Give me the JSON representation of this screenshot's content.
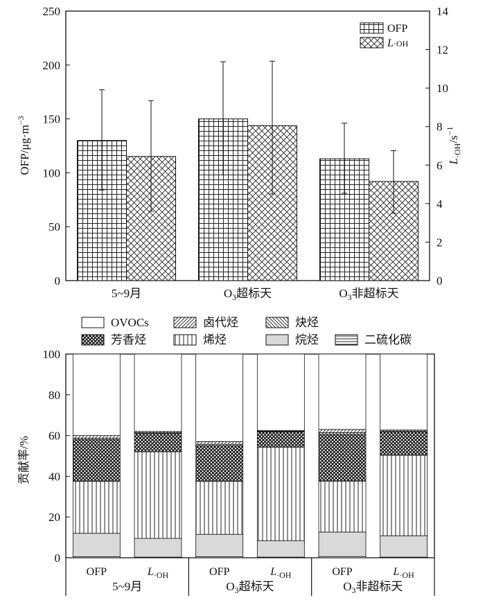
{
  "chart_data": [
    {
      "type": "bar",
      "categories": [
        "5~9月",
        "O₃超标天",
        "O₃非超标天"
      ],
      "ylabel_left": "OFP/μg·m⁻³",
      "ylabel_right": "L·OH/s⁻¹",
      "ylim_left": [
        0,
        250
      ],
      "ylim_right": [
        0,
        14
      ],
      "yticks_left": [
        "0",
        "50",
        "100",
        "150",
        "200",
        "250"
      ],
      "yticks_right": [
        "0",
        "2",
        "4",
        "6",
        "8",
        "10",
        "12",
        "14"
      ],
      "legend": [
        "OFP",
        "L·OH"
      ],
      "series": [
        {
          "name": "OFP",
          "axis": "left",
          "values": [
            130,
            150,
            113
          ],
          "error_low": [
            84,
            98,
            81
          ],
          "error_high": [
            177,
            203,
            146
          ]
        },
        {
          "name": "L·OH",
          "axis": "right",
          "values": [
            6.45,
            8.05,
            5.15
          ],
          "error_low": [
            3.6,
            4.5,
            3.5
          ],
          "error_high": [
            9.35,
            11.4,
            6.75
          ]
        }
      ]
    },
    {
      "type": "bar",
      "stacked": true,
      "ylabel": "贡献率/%",
      "ylim": [
        0,
        100
      ],
      "yticks": [
        "0",
        "20",
        "40",
        "60",
        "80",
        "100"
      ],
      "metric_labels": [
        "OFP",
        "L·OH",
        "OFP",
        "L·OH",
        "OFP",
        "L·OH"
      ],
      "group_labels": [
        "5~9月",
        "O₃超标天",
        "O₃非超标天"
      ],
      "legend": [
        "OVOCs",
        "卤代烃",
        "炔烃",
        "芳香烃",
        "烯烃",
        "烷烃",
        "二硫化碳"
      ],
      "series": [
        {
          "name": "二硫化碳",
          "values": [
            0.5,
            0.3,
            0.5,
            0.3,
            0.6,
            0.3
          ]
        },
        {
          "name": "烷烃",
          "values": [
            11.5,
            9.2,
            11.0,
            8.0,
            12.0,
            10.5
          ]
        },
        {
          "name": "烯烃",
          "values": [
            25.5,
            42.5,
            26.0,
            46.0,
            25.0,
            39.5
          ]
        },
        {
          "name": "芳香烃",
          "values": [
            20.5,
            9.0,
            17.5,
            7.5,
            23.0,
            11.5
          ]
        },
        {
          "name": "炔烃",
          "values": [
            0.7,
            0.4,
            0.7,
            0.3,
            0.8,
            0.4
          ]
        },
        {
          "name": "卤代烃",
          "values": [
            1.3,
            0.6,
            1.3,
            0.4,
            1.6,
            0.5
          ]
        },
        {
          "name": "OVOCs",
          "values": [
            40.0,
            38.0,
            43.0,
            37.5,
            37.0,
            37.3
          ]
        }
      ]
    }
  ]
}
